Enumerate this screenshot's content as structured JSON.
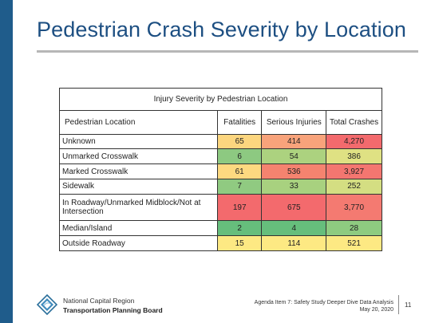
{
  "slide": {
    "title": "Pedestrian Crash Severity by Location"
  },
  "table": {
    "caption": "Injury Severity by Pedestrian Location",
    "columns": [
      "Pedestrian Location",
      "Fatalities",
      "Serious Injuries",
      "Total Crashes"
    ],
    "rows": [
      {
        "location": "Unknown",
        "fatalities": "65",
        "serious": "414",
        "total": "4,270",
        "colors": {
          "fatalities": "#fcd67f",
          "serious": "#f8a37b",
          "total": "#f36a6d"
        }
      },
      {
        "location": "Unmarked Crosswalk",
        "fatalities": "6",
        "serious": "54",
        "total": "386",
        "colors": {
          "fatalities": "#8dc981",
          "serious": "#acd27f",
          "total": "#dfe183"
        }
      },
      {
        "location": "Marked Crosswalk",
        "fatalities": "61",
        "serious": "536",
        "total": "3,927",
        "colors": {
          "fatalities": "#fdd980",
          "serious": "#f5836f",
          "total": "#f47670"
        }
      },
      {
        "location": "Sidewalk",
        "fatalities": "7",
        "serious": "33",
        "total": "252",
        "colors": {
          "fatalities": "#90ca81",
          "serious": "#a8d17f",
          "total": "#d4de82"
        }
      },
      {
        "location": "In Roadway/Unmarked Midblock/Not at Intersection",
        "fatalities": "197",
        "serious": "675",
        "total": "3,770",
        "colors": {
          "fatalities": "#f36a6d",
          "serious": "#f36a6d",
          "total": "#f47a71"
        }
      },
      {
        "location": "Median/Island",
        "fatalities": "2",
        "serious": "4",
        "total": "28",
        "colors": {
          "fatalities": "#66be7c",
          "serious": "#66be7c",
          "total": "#8ecb80"
        }
      },
      {
        "location": "Outside Roadway",
        "fatalities": "15",
        "serious": "114",
        "total": "521",
        "colors": {
          "fatalities": "#fde983",
          "serious": "#fde983",
          "total": "#fde983"
        }
      }
    ]
  },
  "footer": {
    "org_line1": "National Capital Region",
    "org_line2": "Transportation Planning Board",
    "agenda_line1": "Agenda Item 7: Safety Study Deeper Dive Data Analysis",
    "agenda_line2": "May 20, 2020",
    "page_number": "11",
    "logo_icon": "diamond-logo-icon"
  },
  "colors": {
    "side_bar": "#1f5c8b",
    "title": "#1d4f82"
  }
}
